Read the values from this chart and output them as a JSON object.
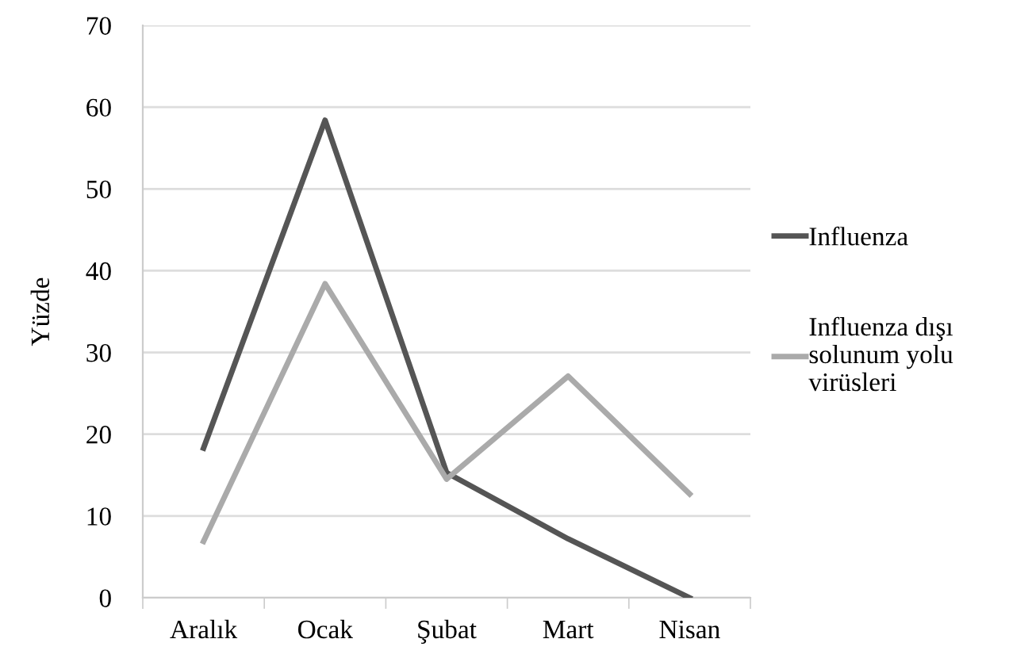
{
  "chart_data": {
    "type": "line",
    "ylabel": "Yüzde",
    "categories": [
      "Aralık",
      "Ocak",
      "Şubat",
      "Mart",
      "Nisan"
    ],
    "series": [
      {
        "name": "Influenza",
        "color": "#555555",
        "values": [
          18.3,
          58.4,
          15.3,
          7.2,
          0
        ]
      },
      {
        "name": "Influenza dışı\nsolunum yolu\nvirüsleri",
        "color": "#aaaaaa",
        "values": [
          6.9,
          38.4,
          14.5,
          27.1,
          12.7
        ]
      }
    ],
    "ylim": [
      0,
      70
    ],
    "yticks": [
      0,
      10,
      20,
      30,
      40,
      50,
      60,
      70
    ],
    "grid": "y",
    "legend": "right",
    "marker": "none",
    "line_style": "solid"
  }
}
